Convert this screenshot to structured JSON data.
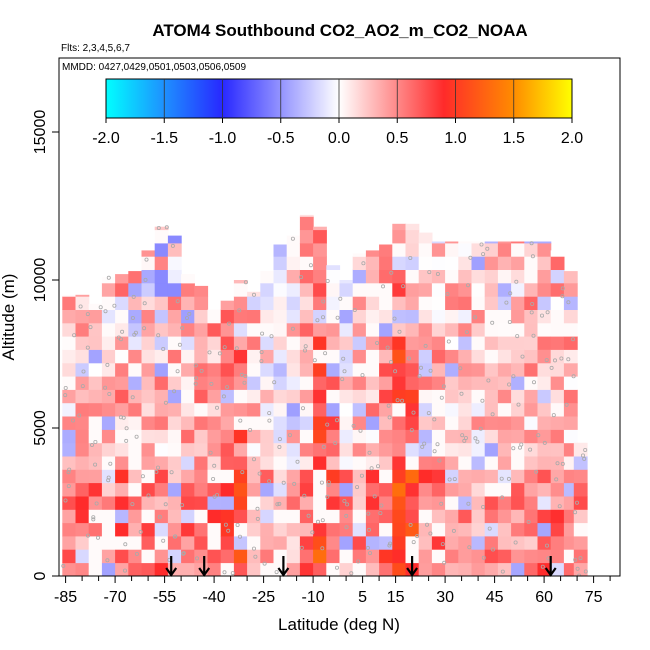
{
  "chart_data": {
    "type": "heatmap",
    "title": "ATOM4 Southbound CO2_AO2_m_CO2_NOAA",
    "flights_label": "Flts: 2,3,4,5,6,7",
    "dates_label": "MMDD: 0427,0429,0501,0503,0506,0509",
    "xlabel": "Latitude (deg N)",
    "ylabel": "Altitude (m)",
    "xlim": [
      -87,
      83
    ],
    "ylim": [
      0,
      17500
    ],
    "x_ticks": [
      -85,
      -70,
      -55,
      -40,
      -25,
      -10,
      5,
      15,
      30,
      45,
      60,
      75
    ],
    "x_ticks_minor": [
      -80,
      -75,
      -65,
      -60,
      -50,
      -45,
      -35,
      -30,
      -20,
      -15,
      -5,
      0,
      10,
      20,
      25,
      35,
      40,
      50,
      55,
      65,
      70,
      80
    ],
    "y_ticks": [
      0,
      5000,
      10000,
      15000
    ],
    "colorbar": {
      "min": -2.0,
      "max": 2.0,
      "tick_labels": [
        "-2.0",
        "-1.5",
        "-1.0",
        "-0.5",
        "0.0",
        "0.5",
        "1.0",
        "1.5",
        "2.0"
      ],
      "colors": [
        "#00ffff",
        "#1e90ff",
        "#2828ff",
        "#ffffff",
        "#ff2a2a",
        "#ff8c00",
        "#ffff00"
      ]
    },
    "arrows_lat": [
      -53,
      -43,
      -19,
      20,
      62
    ],
    "profiles": [
      {
        "lat": -84,
        "top": 9500,
        "base": 0.25
      },
      {
        "lat": -80,
        "top": 9500,
        "base": 0.3
      },
      {
        "lat": -76,
        "top": 9200,
        "base": 0.3
      },
      {
        "lat": -72,
        "top": 10100,
        "base": 0.25
      },
      {
        "lat": -68,
        "top": 10200,
        "base": 0.35
      },
      {
        "lat": -64,
        "top": 10300,
        "base": 0.3
      },
      {
        "lat": -60,
        "top": 11000,
        "base": 0.3
      },
      {
        "lat": -56,
        "top": 11800,
        "base": 0.3
      },
      {
        "lat": -52,
        "top": 11500,
        "base": 0.25
      },
      {
        "lat": -48,
        "top": 10200,
        "base": 0.3
      },
      {
        "lat": -44,
        "top": 9800,
        "base": 0.4
      },
      {
        "lat": -40,
        "top": 9000,
        "base": 0.35
      },
      {
        "lat": -36,
        "top": 9300,
        "base": 0.5
      },
      {
        "lat": -32,
        "top": 10000,
        "base": 0.4
      },
      {
        "lat": -28,
        "top": 9600,
        "base": 0.3
      },
      {
        "lat": -24,
        "top": 10300,
        "base": 0.15
      },
      {
        "lat": -20,
        "top": 11200,
        "base": 0.1
      },
      {
        "lat": -16,
        "top": 11500,
        "base": 0.15
      },
      {
        "lat": -12,
        "top": 12200,
        "base": 0.35
      },
      {
        "lat": -8,
        "top": 11800,
        "base": 0.45
      },
      {
        "lat": -4,
        "top": 10500,
        "base": 0.25
      },
      {
        "lat": 0,
        "top": 10000,
        "base": 0.15
      },
      {
        "lat": 4,
        "top": 10900,
        "base": 0.2
      },
      {
        "lat": 8,
        "top": 11000,
        "base": 0.3
      },
      {
        "lat": 12,
        "top": 11200,
        "base": 0.45
      },
      {
        "lat": 16,
        "top": 11900,
        "base": 0.5
      },
      {
        "lat": 20,
        "top": 11900,
        "base": 0.45
      },
      {
        "lat": 24,
        "top": 11600,
        "base": 0.35
      },
      {
        "lat": 28,
        "top": 11300,
        "base": 0.3
      },
      {
        "lat": 32,
        "top": 11300,
        "base": 0.3
      },
      {
        "lat": 36,
        "top": 11300,
        "base": 0.25
      },
      {
        "lat": 40,
        "top": 11300,
        "base": 0.25
      },
      {
        "lat": 44,
        "top": 11300,
        "base": 0.25
      },
      {
        "lat": 48,
        "top": 11300,
        "base": 0.25
      },
      {
        "lat": 52,
        "top": 11300,
        "base": 0.25
      },
      {
        "lat": 56,
        "top": 11300,
        "base": 0.3
      },
      {
        "lat": 60,
        "top": 11300,
        "base": 0.3
      },
      {
        "lat": 64,
        "top": 11000,
        "base": 0.3
      },
      {
        "lat": 68,
        "top": 10300,
        "base": 0.3
      },
      {
        "lat": 71,
        "top": 4500,
        "base": 0.3
      }
    ]
  }
}
